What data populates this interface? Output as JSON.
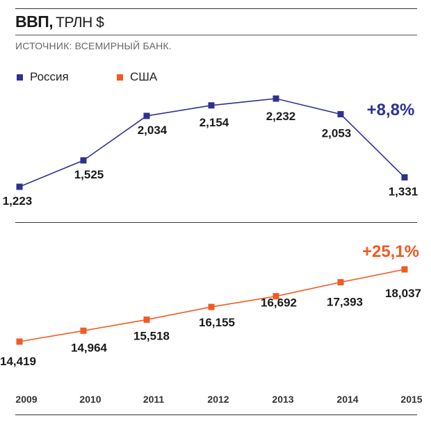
{
  "header": {
    "title": "ВВП,",
    "unit": "ТРЛН $",
    "source": "ИСТОЧНИК: ВСЕМИРНЫЙ БАНК."
  },
  "legend": [
    {
      "name": "Россия",
      "color": "#2e3192"
    },
    {
      "name": "США",
      "color": "#f15a22"
    }
  ],
  "chart_data": {
    "type": "line",
    "x": [
      "2009",
      "2010",
      "2011",
      "2012",
      "2013",
      "2014",
      "2015"
    ],
    "series": [
      {
        "name": "Россия",
        "color": "#2e3192",
        "values": [
          1.223,
          1.525,
          2.034,
          2.154,
          2.232,
          2.053,
          1.331
        ],
        "labels": [
          "1,223",
          "1,525",
          "2,034",
          "2,154",
          "2,232",
          "2,053",
          "1,331"
        ],
        "change": "+8,8%"
      },
      {
        "name": "США",
        "color": "#f15a22",
        "values": [
          14.419,
          14.964,
          15.518,
          16.155,
          16.692,
          17.393,
          18.037
        ],
        "labels": [
          "14,419",
          "14,964",
          "15,518",
          "16,155",
          "16,692",
          "17,393",
          "18,037"
        ],
        "change": "+25,1%"
      }
    ],
    "grid": false
  }
}
